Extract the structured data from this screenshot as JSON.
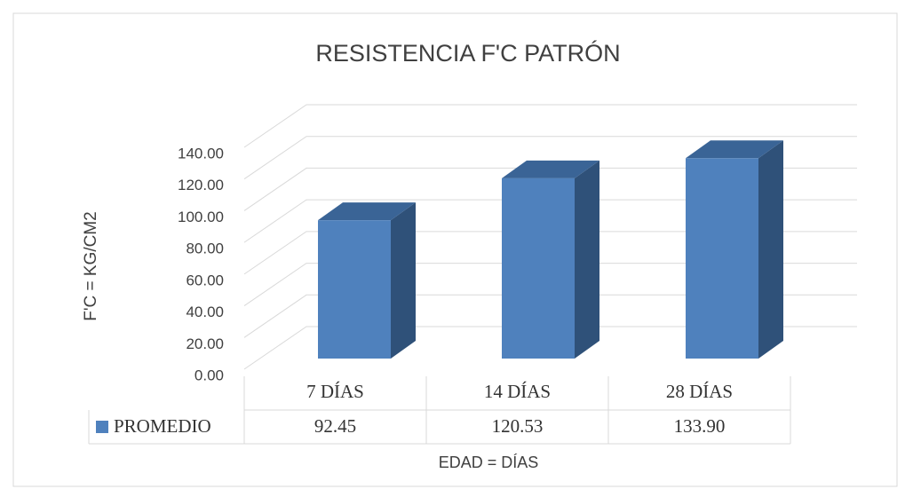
{
  "chart_data": {
    "type": "bar3d",
    "title": "RESISTENCIA F'C PATRÓN",
    "y_label": "F'C = KG/CM2",
    "x_label": "EDAD = DÍAS",
    "categories": [
      "7 DÍAS",
      "14 DÍAS",
      "28 DÍAS"
    ],
    "series": [
      {
        "name": "PROMEDIO",
        "color": "#4f81bd",
        "values": [
          92.45,
          120.53,
          133.9
        ],
        "value_labels": [
          "92.45",
          "120.53",
          "133.90"
        ]
      }
    ],
    "ylim": [
      0,
      140
    ],
    "yticks": [
      {
        "value": 0,
        "label": "0.00"
      },
      {
        "value": 20,
        "label": "20.00"
      },
      {
        "value": 40,
        "label": "40.00"
      },
      {
        "value": 60,
        "label": "60.00"
      },
      {
        "value": 80,
        "label": "80.00"
      },
      {
        "value": 100,
        "label": "100.00"
      },
      {
        "value": 120,
        "label": "120.00"
      },
      {
        "value": 140,
        "label": "140.00"
      }
    ],
    "grid": true
  }
}
